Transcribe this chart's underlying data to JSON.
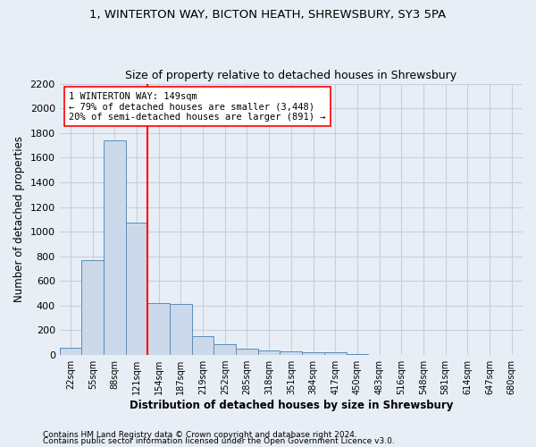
{
  "title_line1": "1, WINTERTON WAY, BICTON HEATH, SHREWSBURY, SY3 5PA",
  "title_line2": "Size of property relative to detached houses in Shrewsbury",
  "xlabel": "Distribution of detached houses by size in Shrewsbury",
  "ylabel": "Number of detached properties",
  "bin_labels": [
    "22sqm",
    "55sqm",
    "88sqm",
    "121sqm",
    "154sqm",
    "187sqm",
    "219sqm",
    "252sqm",
    "285sqm",
    "318sqm",
    "351sqm",
    "384sqm",
    "417sqm",
    "450sqm",
    "483sqm",
    "516sqm",
    "548sqm",
    "581sqm",
    "614sqm",
    "647sqm",
    "680sqm"
  ],
  "bar_values": [
    55,
    770,
    1740,
    1075,
    420,
    415,
    155,
    85,
    50,
    40,
    30,
    25,
    20,
    5,
    2,
    1,
    0,
    0,
    0,
    0,
    0
  ],
  "bar_color": "#ccd9ea",
  "bar_edge_color": "#5b8db8",
  "vline_x": 3.5,
  "vline_color": "red",
  "annotation_text": "1 WINTERTON WAY: 149sqm\n← 79% of detached houses are smaller (3,448)\n20% of semi-detached houses are larger (891) →",
  "annotation_box_color": "white",
  "annotation_box_edge": "red",
  "ylim": [
    0,
    2200
  ],
  "yticks": [
    0,
    200,
    400,
    600,
    800,
    1000,
    1200,
    1400,
    1600,
    1800,
    2000,
    2200
  ],
  "footer_line1": "Contains HM Land Registry data © Crown copyright and database right 2024.",
  "footer_line2": "Contains public sector information licensed under the Open Government Licence v3.0.",
  "bg_color": "#e8eef6",
  "grid_color": "#c5cfe0",
  "title_fontsize": 9.5,
  "subtitle_fontsize": 9,
  "axis_label_fontsize": 8.5,
  "tick_fontsize": 7,
  "annot_fontsize": 7.5,
  "footer_fontsize": 6.5
}
